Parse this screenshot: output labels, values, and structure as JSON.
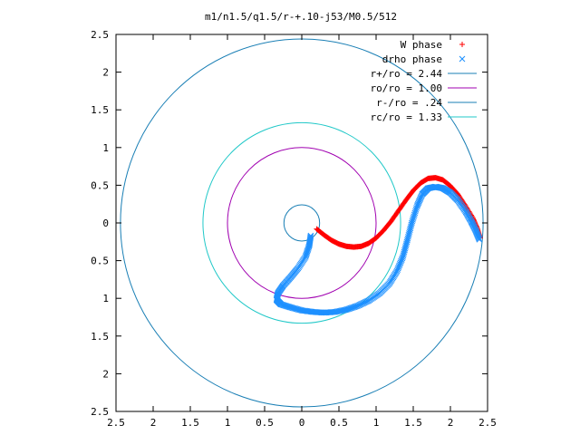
{
  "chart_data": {
    "type": "scatter",
    "title": "m1/n1.5/q1.5/r-+.10-j53/M0.5/512",
    "xlabel": "",
    "ylabel": "",
    "xlim": [
      -2.5,
      2.5
    ],
    "ylim": [
      -2.5,
      2.5
    ],
    "x_ticks": [
      -2.5,
      -2,
      -1.5,
      -1,
      -0.5,
      0,
      0.5,
      1,
      1.5,
      2,
      2.5
    ],
    "y_ticks": [
      -2.5,
      -2,
      -1.5,
      -1,
      -0.5,
      0,
      0.5,
      1,
      1.5,
      2,
      2.5
    ],
    "x_tick_labels": [
      "2.5",
      "2",
      "1.5",
      "1",
      "0.5",
      "0",
      "0.5",
      "1",
      "1.5",
      "2",
      "2.5"
    ],
    "y_tick_labels": [
      "2.5",
      "2",
      "1.5",
      "1",
      "0.5",
      "0",
      "0.5",
      "1",
      "1.5",
      "2",
      "2.5"
    ],
    "grid": false,
    "legend_position": "top-right",
    "series": [
      {
        "name": "W phase",
        "kind": "points",
        "marker": "+",
        "color": "#ff0000",
        "points": [
          [
            0.2,
            -0.08
          ],
          [
            0.3,
            -0.16
          ],
          [
            0.4,
            -0.23
          ],
          [
            0.5,
            -0.28
          ],
          [
            0.6,
            -0.31
          ],
          [
            0.7,
            -0.32
          ],
          [
            0.8,
            -0.31
          ],
          [
            0.9,
            -0.27
          ],
          [
            1.0,
            -0.2
          ],
          [
            1.1,
            -0.1
          ],
          [
            1.2,
            0.02
          ],
          [
            1.3,
            0.16
          ],
          [
            1.4,
            0.3
          ],
          [
            1.5,
            0.43
          ],
          [
            1.6,
            0.53
          ],
          [
            1.7,
            0.59
          ],
          [
            1.8,
            0.6
          ],
          [
            1.9,
            0.57
          ],
          [
            2.0,
            0.49
          ],
          [
            2.1,
            0.38
          ],
          [
            2.2,
            0.23
          ],
          [
            2.3,
            0.07
          ],
          [
            2.36,
            -0.07
          ],
          [
            2.4,
            -0.2
          ]
        ]
      },
      {
        "name": "drho phase",
        "kind": "points",
        "marker": "x",
        "color": "#1e90ff",
        "points": [
          [
            0.12,
            -0.17
          ],
          [
            0.1,
            -0.3
          ],
          [
            0.05,
            -0.45
          ],
          [
            -0.05,
            -0.6
          ],
          [
            -0.15,
            -0.72
          ],
          [
            -0.25,
            -0.83
          ],
          [
            -0.32,
            -0.93
          ],
          [
            -0.34,
            -1.02
          ],
          [
            -0.28,
            -1.08
          ],
          [
            -0.15,
            -1.12
          ],
          [
            0.0,
            -1.16
          ],
          [
            0.15,
            -1.18
          ],
          [
            0.3,
            -1.19
          ],
          [
            0.45,
            -1.18
          ],
          [
            0.6,
            -1.15
          ],
          [
            0.75,
            -1.1
          ],
          [
            0.9,
            -1.03
          ],
          [
            1.05,
            -0.93
          ],
          [
            1.18,
            -0.8
          ],
          [
            1.28,
            -0.64
          ],
          [
            1.36,
            -0.45
          ],
          [
            1.42,
            -0.23
          ],
          [
            1.48,
            0.0
          ],
          [
            1.55,
            0.22
          ],
          [
            1.62,
            0.38
          ],
          [
            1.7,
            0.46
          ],
          [
            1.8,
            0.48
          ],
          [
            1.9,
            0.46
          ],
          [
            2.0,
            0.4
          ],
          [
            2.1,
            0.3
          ],
          [
            2.2,
            0.16
          ],
          [
            2.28,
            0.02
          ],
          [
            2.34,
            -0.1
          ],
          [
            2.39,
            -0.22
          ]
        ]
      },
      {
        "name": "r+/ro = 2.44",
        "kind": "circle",
        "radius": 2.44,
        "color": "#1a7fb5"
      },
      {
        "name": "ro/ro = 1.00",
        "kind": "circle",
        "radius": 1.0,
        "color": "#a000b0"
      },
      {
        "name": "r-/ro = .24",
        "kind": "circle",
        "radius": 0.24,
        "color": "#1a7fb5"
      },
      {
        "name": "rc/ro = 1.33",
        "kind": "circle",
        "radius": 1.33,
        "color": "#20c8c8"
      }
    ]
  }
}
